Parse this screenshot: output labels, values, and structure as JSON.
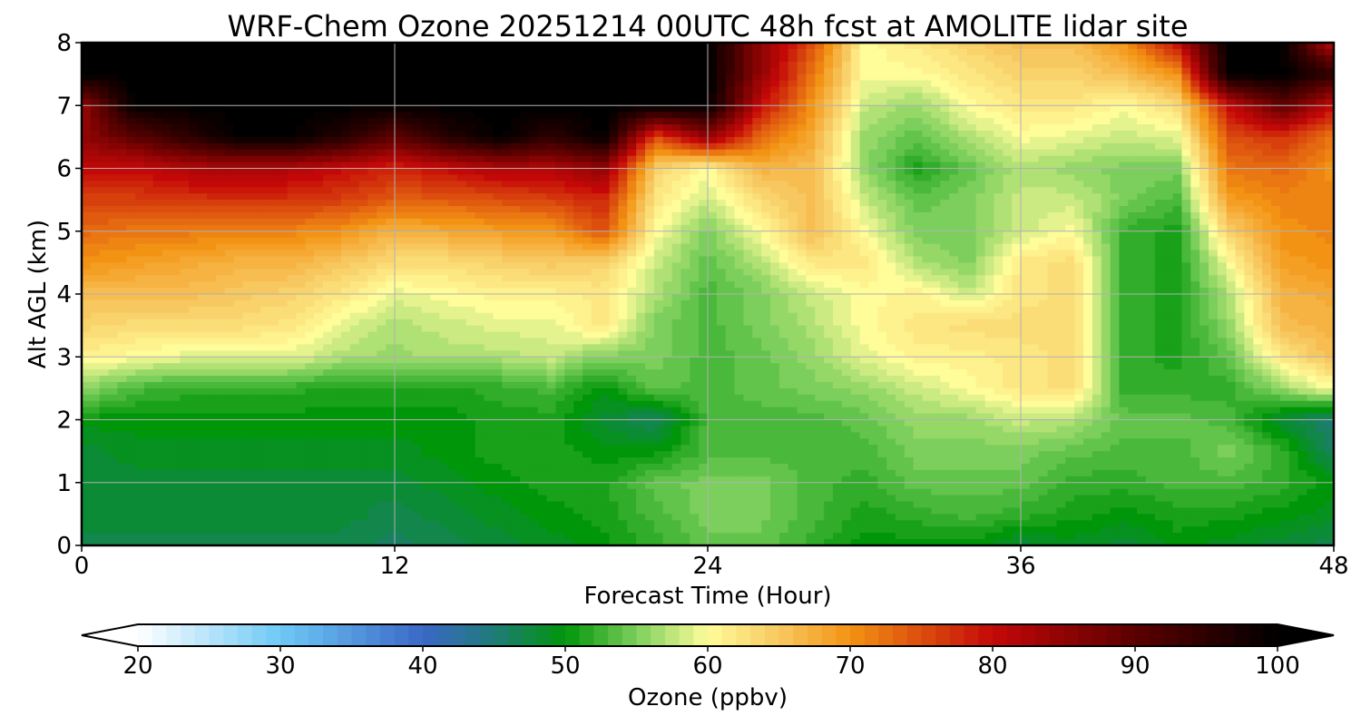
{
  "chart_data": {
    "type": "heatmap",
    "title": "WRF-Chem Ozone  20251214 00UTC 48h fcst at AMOLITE lidar site",
    "xlabel": "Forecast Time (Hour)",
    "ylabel": "Alt AGL (km)",
    "xlim": [
      0,
      48
    ],
    "ylim": [
      0,
      8
    ],
    "x_ticks": [
      "0",
      "12",
      "24",
      "36",
      "48"
    ],
    "y_ticks": [
      "0",
      "1",
      "2",
      "3",
      "4",
      "5",
      "6",
      "7",
      "8"
    ],
    "grid": true,
    "x": [
      0,
      2,
      4,
      6,
      8,
      10,
      12,
      14,
      16,
      18,
      20,
      22,
      24,
      26,
      28,
      30,
      32,
      34,
      36,
      38,
      40,
      42,
      44,
      46,
      48
    ],
    "y": [
      0,
      0.5,
      1,
      1.5,
      2,
      2.5,
      3,
      3.5,
      4,
      4.5,
      5,
      5.5,
      6,
      6.5,
      7,
      7.5,
      8
    ],
    "z": [
      [
        47,
        47,
        47,
        47,
        47,
        47,
        46,
        47,
        48,
        49,
        50,
        52,
        54,
        54,
        52,
        50,
        50,
        50,
        48,
        49,
        48,
        50,
        49,
        48,
        47
      ],
      [
        48,
        48,
        48,
        48,
        48,
        48,
        47,
        48,
        49,
        50,
        51,
        53,
        55,
        55,
        53,
        51,
        52,
        53,
        52,
        51,
        50,
        51,
        51,
        50,
        49
      ],
      [
        48,
        48,
        48,
        48,
        48,
        48,
        48,
        49,
        50,
        51,
        51,
        54,
        55,
        55,
        53,
        52,
        54,
        54,
        54,
        52,
        52,
        53,
        53,
        52,
        50
      ],
      [
        48,
        49,
        49,
        49,
        49,
        49,
        49,
        50,
        51,
        51,
        50,
        50,
        53,
        53,
        53,
        53,
        55,
        55,
        55,
        54,
        53,
        53,
        55,
        52,
        46
      ],
      [
        50,
        50,
        50,
        50,
        50,
        50,
        50,
        50,
        51,
        51,
        48,
        46,
        53,
        53,
        53,
        54,
        56,
        56,
        58,
        57,
        54,
        54,
        53,
        48,
        45
      ],
      [
        56,
        53,
        52,
        52,
        52,
        51,
        51,
        51,
        52,
        53,
        50,
        54,
        53,
        54,
        55,
        56,
        58,
        60,
        62,
        63,
        52,
        52,
        52,
        56,
        60
      ],
      [
        61,
        60,
        59,
        59,
        59,
        57,
        56,
        57,
        57,
        58,
        55,
        55,
        53,
        54,
        56,
        59,
        61,
        61,
        62,
        63,
        52,
        51,
        54,
        62,
        66
      ],
      [
        64,
        63,
        63,
        63,
        62,
        59,
        57,
        58,
        59,
        59,
        62,
        55,
        53,
        55,
        57,
        60,
        62,
        63,
        63,
        63,
        52,
        51,
        56,
        66,
        67
      ],
      [
        66,
        66,
        66,
        65,
        64,
        62,
        59,
        60,
        61,
        61,
        62,
        57,
        53,
        55,
        58,
        60,
        61,
        58,
        62,
        63,
        52,
        51,
        57,
        67,
        68
      ],
      [
        70,
        69,
        68,
        67,
        67,
        65,
        63,
        63,
        64,
        65,
        64,
        58,
        54,
        57,
        62,
        62,
        57,
        55,
        62,
        63,
        52,
        51,
        60,
        69,
        70
      ],
      [
        73,
        72,
        72,
        71,
        71,
        70,
        67,
        68,
        69,
        69,
        75,
        60,
        55,
        60,
        66,
        60,
        55,
        55,
        58,
        60,
        52,
        51,
        64,
        70,
        71
      ],
      [
        76,
        76,
        77,
        77,
        77,
        76,
        74,
        74,
        75,
        76,
        78,
        62,
        58,
        63,
        66,
        58,
        54,
        55,
        58,
        58,
        55,
        53,
        69,
        71,
        71
      ],
      [
        80,
        80,
        82,
        82,
        82,
        80,
        78,
        80,
        82,
        82,
        85,
        64,
        60,
        67,
        66,
        56,
        51,
        54,
        57,
        56,
        55,
        55,
        72,
        73,
        70
      ],
      [
        85,
        90,
        95,
        100,
        100,
        96,
        90,
        96,
        100,
        95,
        100,
        75,
        85,
        73,
        68,
        56,
        54,
        57,
        60,
        59,
        58,
        59,
        75,
        77,
        72
      ],
      [
        84,
        100,
        100,
        100,
        100,
        100,
        100,
        100,
        100,
        100,
        100,
        100,
        100,
        80,
        70,
        58,
        56,
        60,
        62,
        62,
        60,
        63,
        80,
        90,
        80
      ],
      [
        100,
        100,
        100,
        100,
        100,
        100,
        100,
        100,
        100,
        100,
        100,
        100,
        100,
        85,
        72,
        60,
        60,
        62,
        64,
        64,
        66,
        70,
        100,
        100,
        95
      ],
      [
        100,
        100,
        100,
        100,
        100,
        100,
        100,
        100,
        100,
        100,
        100,
        100,
        100,
        85,
        75,
        60,
        62,
        64,
        66,
        66,
        70,
        80,
        100,
        100,
        80
      ]
    ],
    "colorbar": {
      "label": "Ozone  (ppbv)",
      "min": 20,
      "max": 100,
      "extend": "both",
      "ticks": [
        "20",
        "30",
        "40",
        "50",
        "60",
        "70",
        "80",
        "90",
        "100"
      ],
      "stops": [
        {
          "v": 20,
          "c": "#ffffff"
        },
        {
          "v": 30,
          "c": "#6ec9f5"
        },
        {
          "v": 40,
          "c": "#3a68c7"
        },
        {
          "v": 45,
          "c": "#1f7b78"
        },
        {
          "v": 50,
          "c": "#00960a"
        },
        {
          "v": 55,
          "c": "#7ccf5c"
        },
        {
          "v": 60,
          "c": "#fffc9a"
        },
        {
          "v": 65,
          "c": "#f8c860"
        },
        {
          "v": 70,
          "c": "#f39314"
        },
        {
          "v": 80,
          "c": "#c40808"
        },
        {
          "v": 90,
          "c": "#5c0000"
        },
        {
          "v": 100,
          "c": "#000000"
        }
      ]
    }
  }
}
